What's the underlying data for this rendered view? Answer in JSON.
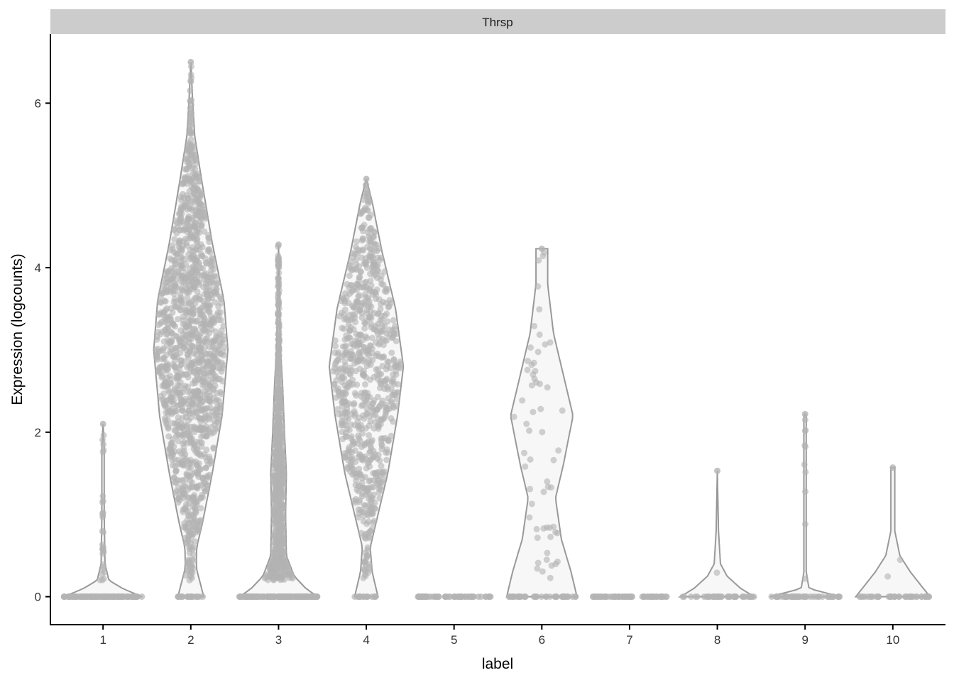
{
  "chart_data": {
    "type": "violin",
    "facet_title": "Thrsp",
    "xlabel": "label",
    "ylabel": "Expression (logcounts)",
    "ylim": [
      -0.34,
      6.84
    ],
    "yticks": [
      0,
      2,
      4,
      6
    ],
    "categories": [
      "1",
      "2",
      "3",
      "4",
      "5",
      "6",
      "7",
      "8",
      "9",
      "10"
    ],
    "grid": false,
    "colors": {
      "violin_stroke": "#999999",
      "violin_fill": "#f7f7f7",
      "points": "#b3b3b3",
      "strip": "#cccccc"
    },
    "groups": [
      {
        "label": "1",
        "max": 2.1,
        "n_zero": 120,
        "n_nonzero": 30,
        "profile": [
          [
            0,
            1
          ],
          [
            0.1,
            0.5
          ],
          [
            0.2,
            0.15
          ],
          [
            0.4,
            0.05
          ],
          [
            1,
            0.03
          ],
          [
            1.8,
            0.03
          ],
          [
            2.1,
            0
          ]
        ]
      },
      {
        "label": "2",
        "max": 6.5,
        "n_zero": 20,
        "n_nonzero": 1400,
        "profile": [
          [
            0,
            0.33
          ],
          [
            0.15,
            0.25
          ],
          [
            0.35,
            0.14
          ],
          [
            0.6,
            0.15
          ],
          [
            0.9,
            0.3
          ],
          [
            1.5,
            0.55
          ],
          [
            2.2,
            0.8
          ],
          [
            3,
            0.95
          ],
          [
            3.6,
            0.85
          ],
          [
            4.3,
            0.55
          ],
          [
            5,
            0.3
          ],
          [
            5.6,
            0.1
          ],
          [
            6,
            0.05
          ],
          [
            6.5,
            0
          ]
        ]
      },
      {
        "label": "3",
        "max": 4.28,
        "n_zero": 150,
        "n_nonzero": 700,
        "profile": [
          [
            0,
            1
          ],
          [
            0.1,
            0.7
          ],
          [
            0.25,
            0.4
          ],
          [
            0.5,
            0.2
          ],
          [
            1,
            0.18
          ],
          [
            1.5,
            0.2
          ],
          [
            2,
            0.15
          ],
          [
            2.6,
            0.1
          ],
          [
            3,
            0.05
          ],
          [
            3.5,
            0.03
          ],
          [
            4.28,
            0
          ]
        ]
      },
      {
        "label": "4",
        "max": 5.08,
        "n_zero": 15,
        "n_nonzero": 800,
        "profile": [
          [
            0,
            0.3
          ],
          [
            0.3,
            0.15
          ],
          [
            0.6,
            0.1
          ],
          [
            0.9,
            0.25
          ],
          [
            1.5,
            0.55
          ],
          [
            2.2,
            0.8
          ],
          [
            2.8,
            0.95
          ],
          [
            3.5,
            0.75
          ],
          [
            4.2,
            0.4
          ],
          [
            4.8,
            0.15
          ],
          [
            5.08,
            0
          ]
        ]
      },
      {
        "label": "5",
        "max": 0,
        "n_zero": 60,
        "n_nonzero": 0,
        "profile": []
      },
      {
        "label": "6",
        "max": 4.23,
        "n_zero": 40,
        "n_nonzero": 60,
        "profile": [
          [
            0,
            0.9
          ],
          [
            0.3,
            0.75
          ],
          [
            0.7,
            0.5
          ],
          [
            1.2,
            0.35
          ],
          [
            1.6,
            0.55
          ],
          [
            2.2,
            0.8
          ],
          [
            2.6,
            0.6
          ],
          [
            3.2,
            0.3
          ],
          [
            3.8,
            0.15
          ],
          [
            4.23,
            0.15
          ]
        ]
      },
      {
        "label": "7",
        "max": 0,
        "n_zero": 60,
        "n_nonzero": 0,
        "profile": []
      },
      {
        "label": "8",
        "max": 1.53,
        "n_zero": 40,
        "n_nonzero": 1,
        "profile": [
          [
            0,
            0.95
          ],
          [
            0.1,
            0.6
          ],
          [
            0.25,
            0.25
          ],
          [
            0.4,
            0.08
          ],
          [
            0.8,
            0.03
          ],
          [
            1.53,
            0
          ]
        ]
      },
      {
        "label": "9",
        "max": 2.22,
        "n_zero": 50,
        "n_nonzero": 10,
        "profile": [
          [
            0,
            0.9
          ],
          [
            0.05,
            0.5
          ],
          [
            0.1,
            0.1
          ],
          [
            0.3,
            0.03
          ],
          [
            2.2,
            0.03
          ],
          [
            2.22,
            0
          ]
        ]
      },
      {
        "label": "10",
        "max": 1.57,
        "n_zero": 40,
        "n_nonzero": 2,
        "profile": [
          [
            0,
            0.95
          ],
          [
            0.15,
            0.7
          ],
          [
            0.3,
            0.45
          ],
          [
            0.5,
            0.18
          ],
          [
            0.8,
            0.05
          ],
          [
            1.57,
            0.05
          ]
        ]
      }
    ]
  }
}
